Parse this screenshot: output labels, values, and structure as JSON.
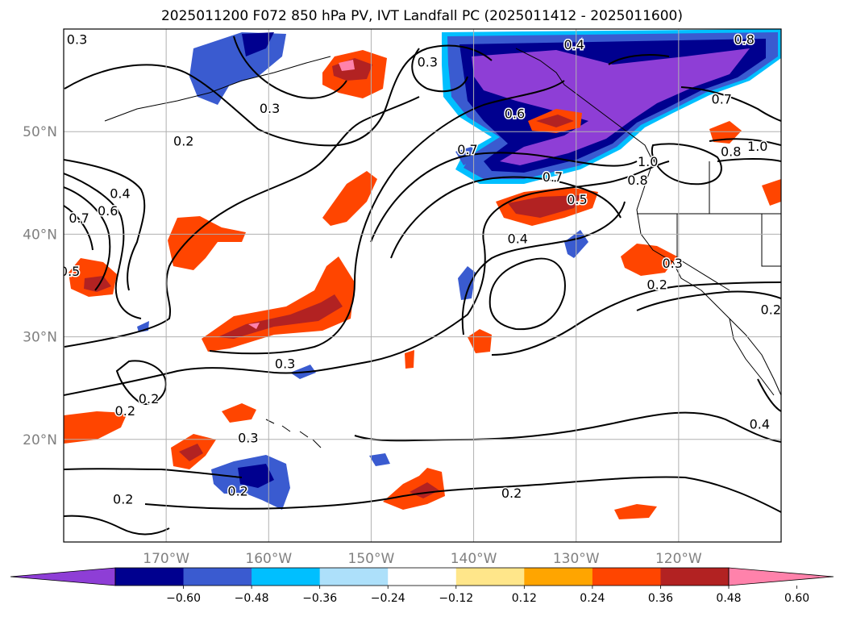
{
  "title": "2025011200 F072 850 hPa PV, IVT Landfall PC (2025011412 - 2025011600)",
  "map": {
    "lon_range": [
      -180,
      -110
    ],
    "lat_range": [
      10,
      60
    ],
    "grid": true,
    "lon_ticks": [
      {
        "value": -170,
        "label": "170°W"
      },
      {
        "value": -160,
        "label": "160°W"
      },
      {
        "value": -150,
        "label": "150°W"
      },
      {
        "value": -140,
        "label": "140°W"
      },
      {
        "value": -130,
        "label": "130°W"
      },
      {
        "value": -120,
        "label": "120°W"
      }
    ],
    "lat_ticks": [
      {
        "value": 20,
        "label": "20°N"
      },
      {
        "value": 30,
        "label": "30°N"
      },
      {
        "value": 40,
        "label": "40°N"
      },
      {
        "value": 50,
        "label": "50°N"
      }
    ]
  },
  "colorbar": {
    "colors": [
      "#8e3ed6",
      "#00008f",
      "#3a5bd0",
      "#00bfff",
      "#ade0fa",
      "#ffffff",
      "#ffe68a",
      "#ffa500",
      "#ff4500",
      "#b22222",
      "#ff82ab"
    ],
    "tick_labels": [
      "−0.60",
      "−0.48",
      "−0.36",
      "−0.24",
      "−0.12",
      "0.12",
      "0.24",
      "0.36",
      "0.48",
      "0.60"
    ],
    "extend": "both"
  },
  "contour_labels": [
    {
      "text": "0.3",
      "lon": -178.7,
      "lat": 59.0
    },
    {
      "text": "0.3",
      "lon": -144.5,
      "lat": 56.8
    },
    {
      "text": "0.3",
      "lon": -159.9,
      "lat": 52.3
    },
    {
      "text": "0.2",
      "lon": -168.3,
      "lat": 49.1
    },
    {
      "text": "0.4",
      "lon": -130.2,
      "lat": 58.5
    },
    {
      "text": "0.8",
      "lon": -113.6,
      "lat": 59.0
    },
    {
      "text": "0.6",
      "lon": -136.0,
      "lat": 51.8
    },
    {
      "text": "0.7",
      "lon": -140.6,
      "lat": 48.3
    },
    {
      "text": "0.7",
      "lon": -115.8,
      "lat": 53.2
    },
    {
      "text": "0.8",
      "lon": -114.9,
      "lat": 48.1
    },
    {
      "text": "1.0",
      "lon": -112.3,
      "lat": 48.6
    },
    {
      "text": "1.0",
      "lon": -123.0,
      "lat": 47.1
    },
    {
      "text": "0.8",
      "lon": -124.0,
      "lat": 45.3
    },
    {
      "text": "0.7",
      "lon": -132.3,
      "lat": 45.6
    },
    {
      "text": "0.5",
      "lon": -129.9,
      "lat": 43.4
    },
    {
      "text": "0.4",
      "lon": -135.7,
      "lat": 39.6
    },
    {
      "text": "0.4",
      "lon": -174.5,
      "lat": 44.0
    },
    {
      "text": "0.6",
      "lon": -175.7,
      "lat": 42.3
    },
    {
      "text": "0.7",
      "lon": -178.5,
      "lat": 41.6
    },
    {
      "text": "0.5",
      "lon": -179.4,
      "lat": 36.4
    },
    {
      "text": "0.3",
      "lon": -120.6,
      "lat": 37.2
    },
    {
      "text": "0.2",
      "lon": -122.1,
      "lat": 35.1
    },
    {
      "text": "0.2",
      "lon": -111.0,
      "lat": 32.7
    },
    {
      "text": "0.3",
      "lon": -158.4,
      "lat": 27.4
    },
    {
      "text": "0.2",
      "lon": -174.0,
      "lat": 22.8
    },
    {
      "text": "0.2",
      "lon": -171.7,
      "lat": 24.0
    },
    {
      "text": "0.3",
      "lon": -162.0,
      "lat": 20.2
    },
    {
      "text": "0.2",
      "lon": -163.0,
      "lat": 15.0
    },
    {
      "text": "0.2",
      "lon": -174.2,
      "lat": 14.2
    },
    {
      "text": "0.2",
      "lon": -136.3,
      "lat": 14.8
    },
    {
      "text": "0.4",
      "lon": -112.1,
      "lat": 21.5
    }
  ]
}
